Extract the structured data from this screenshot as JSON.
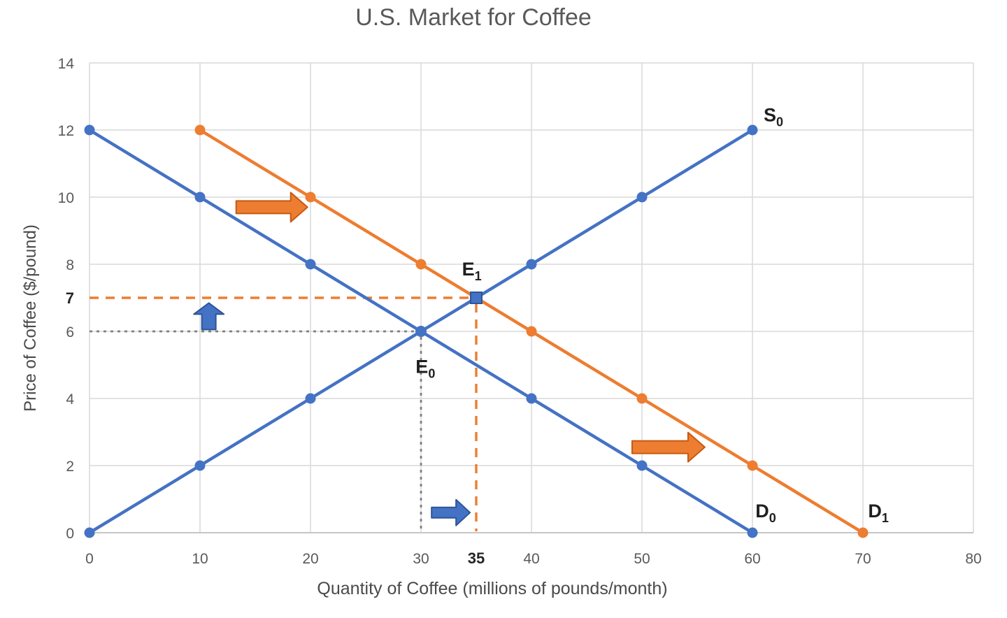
{
  "chart_data": {
    "type": "line",
    "title": "U.S. Market for Coffee",
    "xlabel": "Quantity of Coffee (millions of pounds/month)",
    "ylabel": "Price of Coffee ($/pound)",
    "xlim": [
      0,
      80
    ],
    "ylim": [
      0,
      14
    ],
    "xticks": [
      0,
      10,
      20,
      30,
      40,
      50,
      60,
      70,
      80
    ],
    "yticks": [
      0,
      2,
      4,
      6,
      8,
      10,
      12,
      14
    ],
    "special_xticks": [
      {
        "value": 35,
        "label": "35"
      }
    ],
    "special_yticks": [
      {
        "value": 7,
        "label": "7"
      }
    ],
    "grid": true,
    "legend": "none",
    "colors": {
      "blue": "#4472C4",
      "blue_dark": "#2E5597",
      "orange": "#ED7D31",
      "orange_dark": "#C55A11",
      "grid": "#D9D9D9",
      "axis": "#C6C6C6",
      "tick": "#595959",
      "tick_bold": "#262626",
      "title": "#595959",
      "curve_label": "#1F1F1F",
      "guide_gray": "#7F7F7F"
    },
    "series": [
      {
        "name": "D0",
        "label_base": "D",
        "label_sub": "0",
        "color": "#4472C4",
        "points": [
          [
            0,
            12
          ],
          [
            10,
            10
          ],
          [
            20,
            8
          ],
          [
            30,
            6
          ],
          [
            40,
            4
          ],
          [
            50,
            2
          ],
          [
            60,
            0
          ]
        ],
        "label_at": [
          61.2,
          0.65
        ]
      },
      {
        "name": "D1",
        "label_base": "D",
        "label_sub": "1",
        "color": "#ED7D31",
        "points": [
          [
            10,
            12
          ],
          [
            20,
            10
          ],
          [
            30,
            8
          ],
          [
            40,
            6
          ],
          [
            50,
            4
          ],
          [
            60,
            2
          ],
          [
            70,
            0
          ]
        ],
        "label_at": [
          71.4,
          0.65
        ]
      },
      {
        "name": "S0",
        "label_base": "S",
        "label_sub": "0",
        "color": "#4472C4",
        "points": [
          [
            0,
            0
          ],
          [
            10,
            2
          ],
          [
            20,
            4
          ],
          [
            30,
            6
          ],
          [
            40,
            8
          ],
          [
            50,
            10
          ],
          [
            60,
            12
          ]
        ],
        "label_at": [
          61.9,
          12.45
        ]
      }
    ],
    "equilibria": [
      {
        "name": "E0",
        "label_base": "E",
        "label_sub": "0",
        "point": [
          30,
          6
        ],
        "marker": "circle",
        "marker_color": "#4472C4",
        "label_at": [
          30.4,
          4.95
        ],
        "guide": {
          "color": "#7F7F7F",
          "dash": "4 6",
          "width": 2.8
        }
      },
      {
        "name": "E1",
        "label_base": "E",
        "label_sub": "1",
        "point": [
          35,
          7
        ],
        "marker": "square",
        "marker_color": "#4472C4",
        "label_at": [
          34.6,
          7.85
        ],
        "guide": {
          "color": "#ED7D31",
          "dash": "13 10",
          "width": 3.4
        }
      }
    ],
    "arrows": [
      {
        "name": "demand-shift-arrow-upper",
        "dir": "right",
        "fill": "#ED7D31",
        "outline": "#C55A11",
        "center": [
          16.5,
          9.7
        ],
        "length": 102,
        "body": 18,
        "head_w": 42,
        "head_len": 24
      },
      {
        "name": "demand-shift-arrow-lower",
        "dir": "right",
        "fill": "#ED7D31",
        "outline": "#C55A11",
        "center": [
          52.4,
          2.55
        ],
        "length": 104,
        "body": 18,
        "head_w": 42,
        "head_len": 24
      },
      {
        "name": "price-increase-arrow",
        "dir": "up",
        "fill": "#4472C4",
        "outline": "#2E5597",
        "center": [
          10.8,
          6.45
        ],
        "length": 38,
        "body": 20,
        "head_w": 43,
        "head_len": 16
      },
      {
        "name": "quantity-increase-arrow",
        "dir": "right",
        "fill": "#4472C4",
        "outline": "#2E5597",
        "center": [
          32.7,
          0.6
        ],
        "length": 55,
        "body": 15,
        "head_w": 37,
        "head_len": 20
      }
    ]
  }
}
